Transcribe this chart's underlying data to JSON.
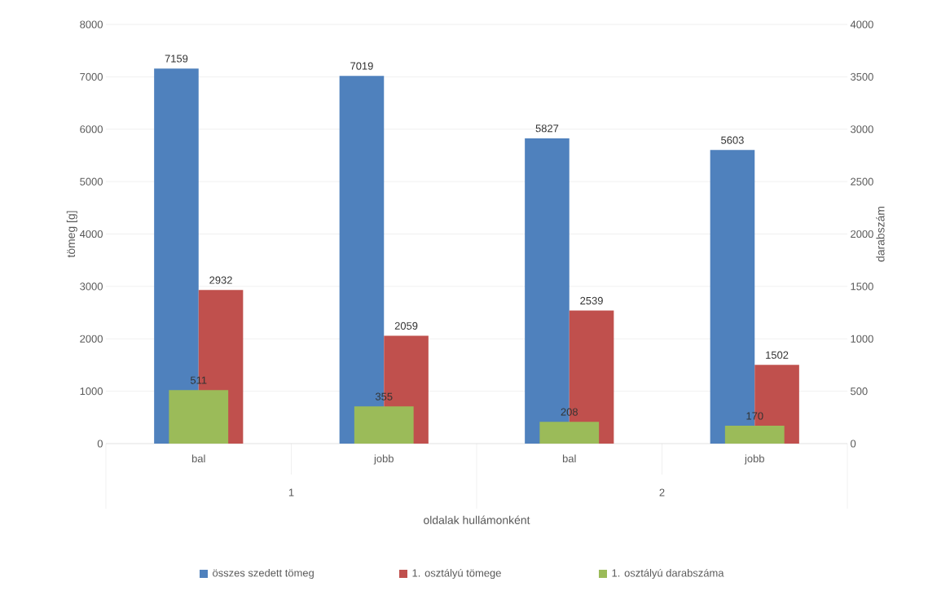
{
  "chart_data": {
    "type": "bar",
    "categories": [
      "bal",
      "jobb",
      "bal",
      "jobb"
    ],
    "annotations": [
      "1",
      "2"
    ],
    "xlabel": "oldalak hullámonként",
    "ylabel": "tömeg [g]",
    "y2label": "darabszám",
    "ylim": [
      0,
      8000
    ],
    "yticks": [
      0,
      1000,
      2000,
      3000,
      4000,
      5000,
      6000,
      7000,
      8000
    ],
    "y2lim": [
      0,
      4000
    ],
    "y2ticks": [
      0,
      500,
      1000,
      1500,
      2000,
      2500,
      3000,
      3500,
      4000
    ],
    "grid": "y",
    "legend": "bottom",
    "data_labels": true,
    "series": [
      {
        "name": "összes szedett tömeg",
        "color": "#4f81bd",
        "values": [
          7159,
          7019,
          5827,
          5603
        ]
      },
      {
        "name": "1. osztályú tömege",
        "color": "#c0504d",
        "values": [
          2932,
          2059,
          2539,
          1502
        ]
      },
      {
        "name": "1. osztályú darabszáma",
        "color": "#9bbb59",
        "axis": "y2",
        "values": [
          511,
          355,
          208,
          170
        ]
      }
    ]
  }
}
